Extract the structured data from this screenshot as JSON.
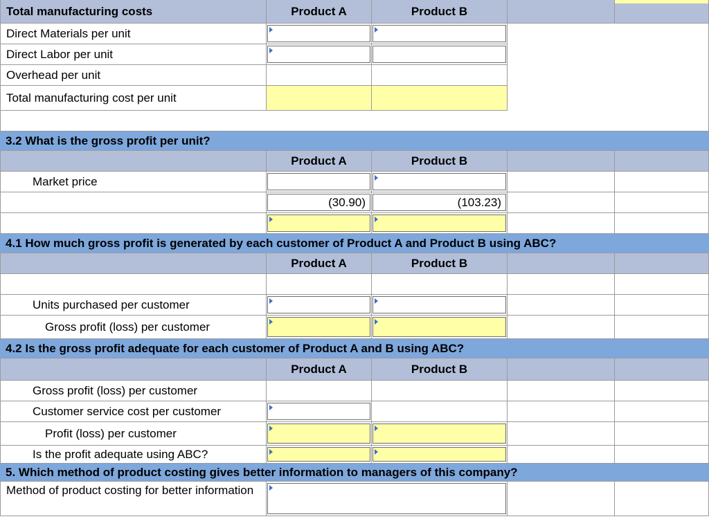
{
  "product_a": "Product A",
  "product_b": "Product B",
  "table1": {
    "title": "Total manufacturing costs",
    "rows": [
      "Direct Materials per unit",
      "Direct Labor per unit",
      "Overhead per unit",
      "Total manufacturing cost per unit"
    ]
  },
  "q32": {
    "title": "3.2 What is the gross profit per unit?",
    "market_price": "Market price",
    "value_a": "(30.90)",
    "value_b": "(103.23)"
  },
  "q41": {
    "title": "4.1 How much gross profit is generated by each customer of Product A and Product B using ABC?",
    "units": "Units purchased per customer",
    "gross_profit": "Gross profit (loss) per customer"
  },
  "q42": {
    "title": "4.2 Is the gross profit adequate for each customer of Product A and B using ABC?",
    "gross_profit": "Gross profit (loss) per customer",
    "service_cost": "Customer service cost per customer",
    "profit": "Profit (loss) per customer",
    "adequate": "Is the profit adequate using ABC?"
  },
  "q5": {
    "title": "5. Which method of product costing gives better information to managers of this company?",
    "label": "Method of product costing for better information"
  }
}
